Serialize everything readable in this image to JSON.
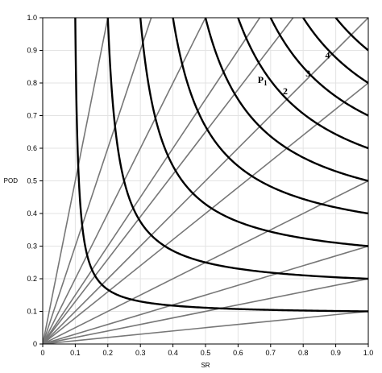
{
  "chart_data": {
    "type": "line",
    "title": "",
    "xlabel": "SR",
    "ylabel": "POD",
    "xlim": [
      0,
      1
    ],
    "ylim": [
      0,
      1
    ],
    "grid": true,
    "x_ticks": [
      "0",
      "0.1",
      "0.2",
      "0.3",
      "0.4",
      "0.5",
      "0.6",
      "0.7",
      "0.8",
      "0.9",
      "1.0"
    ],
    "y_ticks": [
      "0",
      "0.1",
      "0.2",
      "0.3",
      "0.4",
      "0.5",
      "0.6",
      "0.7",
      "0.8",
      "0.9",
      "1.0"
    ],
    "colors": {
      "csi_curves": "#000000",
      "bias_lines": "#777777",
      "grid": "#e3e3e3",
      "frame": "#000000"
    },
    "csi_curves": [
      {
        "csi": 0.1
      },
      {
        "csi": 0.2
      },
      {
        "csi": 0.3
      },
      {
        "csi": 0.4
      },
      {
        "csi": 0.5
      },
      {
        "csi": 0.6
      },
      {
        "csi": 0.7
      },
      {
        "csi": 0.8
      },
      {
        "csi": 0.9
      }
    ],
    "bias_lines": [
      {
        "bias": 0.1
      },
      {
        "bias": 0.2
      },
      {
        "bias": 0.3
      },
      {
        "bias": 0.5
      },
      {
        "bias": 0.8
      },
      {
        "bias": 1
      },
      {
        "bias": 1.3
      },
      {
        "bias": 1.5
      },
      {
        "bias": 2
      },
      {
        "bias": 3
      },
      {
        "bias": 5
      }
    ],
    "annotations": [
      {
        "text": "P",
        "sub": "1",
        "x": 0.675,
        "y": 0.8
      },
      {
        "text": "2",
        "x": 0.745,
        "y": 0.765
      },
      {
        "text": "3",
        "x": 0.815,
        "y": 0.82
      },
      {
        "text": "4",
        "x": 0.875,
        "y": 0.875
      }
    ]
  }
}
